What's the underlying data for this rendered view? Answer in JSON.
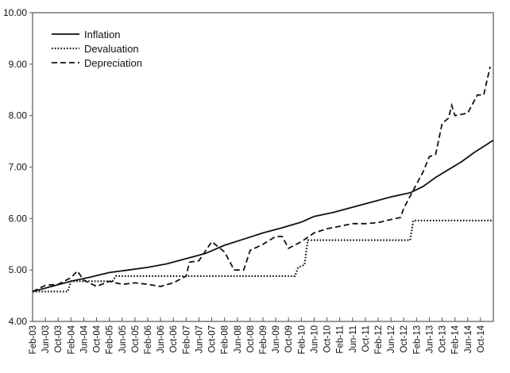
{
  "chart_data": {
    "type": "line",
    "title": "",
    "xlabel": "",
    "ylabel": "",
    "ylim": [
      4.0,
      10.0
    ],
    "yticks": [
      "4.00",
      "5.00",
      "6.00",
      "7.00",
      "8.00",
      "9.00",
      "10.00"
    ],
    "xlim": [
      "2003-02",
      "2015-02"
    ],
    "xtick_labels": [
      "Feb-03",
      "Jun-03",
      "Oct-03",
      "Feb-04",
      "Jun-04",
      "Oct-04",
      "Feb-05",
      "Jun-05",
      "Oct-05",
      "Feb-06",
      "Jun-06",
      "Oct-06",
      "Feb-07",
      "Jun-07",
      "Oct-07",
      "Feb-08",
      "Jun-08",
      "Oct-08",
      "Feb-09",
      "Jun-09",
      "Oct-09",
      "Feb-10",
      "Jun-10",
      "Oct-10",
      "Feb-11",
      "Jun-11",
      "Oct-11",
      "Feb-12",
      "Jun-12",
      "Oct-12",
      "Feb-13",
      "Jun-13",
      "Oct-13",
      "Feb-14",
      "Jun-14",
      "Oct-14"
    ],
    "grid": false,
    "legend_position": "top-left",
    "series": [
      {
        "name": "Inflation",
        "style": "solid",
        "points": [
          [
            "2003-02",
            4.58
          ],
          [
            "2003-08",
            4.68
          ],
          [
            "2004-02",
            4.78
          ],
          [
            "2004-08",
            4.86
          ],
          [
            "2005-02",
            4.95
          ],
          [
            "2005-08",
            5.0
          ],
          [
            "2006-02",
            5.05
          ],
          [
            "2006-08",
            5.12
          ],
          [
            "2007-02",
            5.22
          ],
          [
            "2007-08",
            5.32
          ],
          [
            "2008-02",
            5.48
          ],
          [
            "2008-08",
            5.6
          ],
          [
            "2009-02",
            5.72
          ],
          [
            "2009-08",
            5.82
          ],
          [
            "2010-02",
            5.93
          ],
          [
            "2010-06",
            6.04
          ],
          [
            "2010-12",
            6.12
          ],
          [
            "2011-06",
            6.22
          ],
          [
            "2011-12",
            6.32
          ],
          [
            "2012-06",
            6.42
          ],
          [
            "2012-12",
            6.5
          ],
          [
            "2013-04",
            6.62
          ],
          [
            "2013-08",
            6.8
          ],
          [
            "2013-12",
            6.95
          ],
          [
            "2014-04",
            7.1
          ],
          [
            "2014-08",
            7.28
          ],
          [
            "2015-02",
            7.52
          ]
        ]
      },
      {
        "name": "Devaluation",
        "style": "dotted",
        "points": [
          [
            "2003-02",
            4.58
          ],
          [
            "2004-01",
            4.58
          ],
          [
            "2004-02",
            4.78
          ],
          [
            "2005-03",
            4.78
          ],
          [
            "2005-04",
            4.88
          ],
          [
            "2009-12",
            4.88
          ],
          [
            "2010-01",
            5.05
          ],
          [
            "2010-03",
            5.1
          ],
          [
            "2010-04",
            5.58
          ],
          [
            "2012-12",
            5.58
          ],
          [
            "2013-01",
            5.96
          ],
          [
            "2015-02",
            5.96
          ]
        ]
      },
      {
        "name": "Depreciation",
        "style": "dashed",
        "points": [
          [
            "2003-02",
            4.58
          ],
          [
            "2003-06",
            4.7
          ],
          [
            "2003-10",
            4.72
          ],
          [
            "2004-02",
            4.85
          ],
          [
            "2004-04",
            4.98
          ],
          [
            "2004-06",
            4.8
          ],
          [
            "2004-10",
            4.68
          ],
          [
            "2005-02",
            4.78
          ],
          [
            "2005-06",
            4.72
          ],
          [
            "2005-10",
            4.75
          ],
          [
            "2006-02",
            4.72
          ],
          [
            "2006-06",
            4.68
          ],
          [
            "2006-10",
            4.75
          ],
          [
            "2007-02",
            4.88
          ],
          [
            "2007-03",
            5.15
          ],
          [
            "2007-06",
            5.18
          ],
          [
            "2007-10",
            5.55
          ],
          [
            "2008-02",
            5.35
          ],
          [
            "2008-05",
            5.0
          ],
          [
            "2008-08",
            5.0
          ],
          [
            "2008-10",
            5.38
          ],
          [
            "2009-02",
            5.5
          ],
          [
            "2009-06",
            5.65
          ],
          [
            "2009-08",
            5.65
          ],
          [
            "2009-10",
            5.42
          ],
          [
            "2010-02",
            5.55
          ],
          [
            "2010-06",
            5.72
          ],
          [
            "2010-10",
            5.8
          ],
          [
            "2011-02",
            5.85
          ],
          [
            "2011-06",
            5.9
          ],
          [
            "2011-10",
            5.9
          ],
          [
            "2012-02",
            5.92
          ],
          [
            "2012-06",
            5.98
          ],
          [
            "2012-09",
            6.02
          ],
          [
            "2012-10",
            6.2
          ],
          [
            "2013-01",
            6.55
          ],
          [
            "2013-04",
            6.9
          ],
          [
            "2013-06",
            7.2
          ],
          [
            "2013-08",
            7.25
          ],
          [
            "2013-10",
            7.85
          ],
          [
            "2013-12",
            7.95
          ],
          [
            "2014-01",
            8.2
          ],
          [
            "2014-02",
            8.0
          ],
          [
            "2014-06",
            8.05
          ],
          [
            "2014-09",
            8.4
          ],
          [
            "2014-11",
            8.4
          ],
          [
            "2015-01",
            8.95
          ]
        ]
      }
    ]
  }
}
